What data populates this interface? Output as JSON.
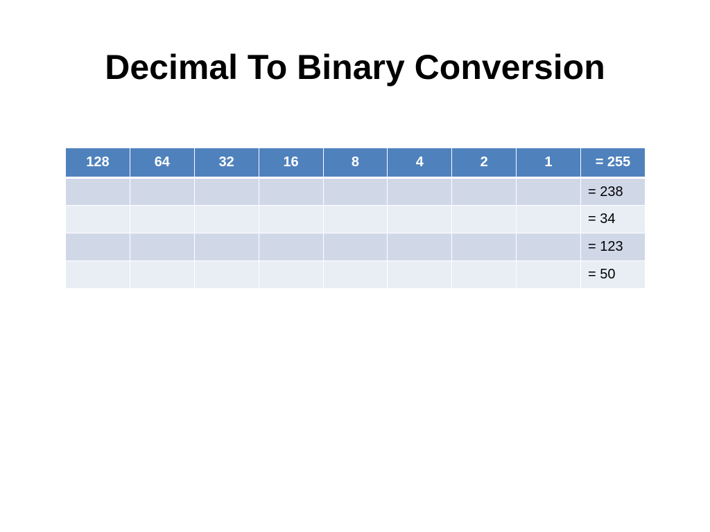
{
  "slide": {
    "title": "Decimal To Binary Conversion"
  },
  "table": {
    "header": [
      "128",
      "64",
      "32",
      "16",
      "8",
      "4",
      "2",
      "1",
      "= 255"
    ],
    "rows": [
      {
        "bits": [
          "",
          "",
          "",
          "",
          "",
          "",
          "",
          ""
        ],
        "result": "= 238"
      },
      {
        "bits": [
          "",
          "",
          "",
          "",
          "",
          "",
          "",
          ""
        ],
        "result": "= 34"
      },
      {
        "bits": [
          "",
          "",
          "",
          "",
          "",
          "",
          "",
          ""
        ],
        "result": "= 123"
      },
      {
        "bits": [
          "",
          "",
          "",
          "",
          "",
          "",
          "",
          ""
        ],
        "result": "= 50"
      }
    ]
  },
  "colors": {
    "header_bg": "#4f81bd",
    "row_odd_bg": "#d0d8e8",
    "row_even_bg": "#e9edf4"
  }
}
